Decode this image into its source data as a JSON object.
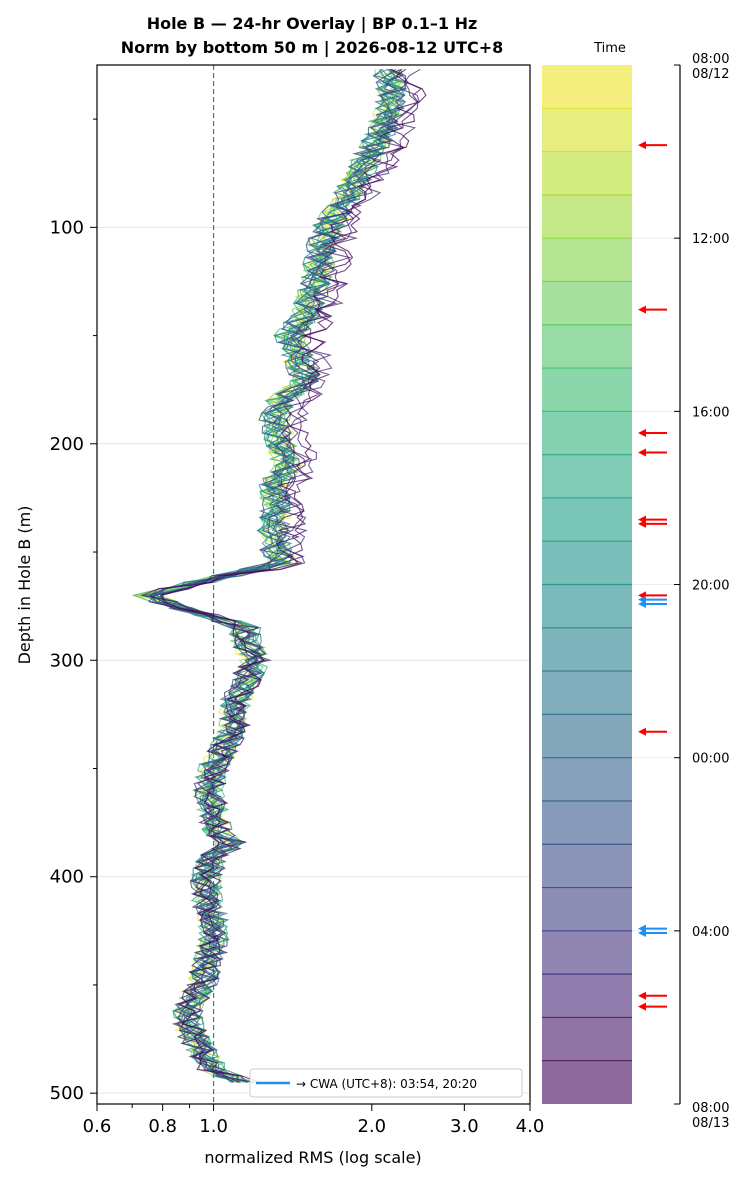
{
  "chart_data": {
    "type": "line",
    "title_line1": "Hole B — 24-hr Overlay  |  BP 0.1–1 Hz",
    "title_line2": "Norm by bottom 50 m  |  2026-08-12 UTC+8",
    "xlabel": "normalized RMS  (log scale)",
    "ylabel": "Depth in Hole B (m)",
    "xscale": "log",
    "xlim": [
      0.6,
      4.0
    ],
    "ylim": [
      505,
      25
    ],
    "x_ticks": [
      0.6,
      0.8,
      1.0,
      2.0,
      3.0,
      4.0
    ],
    "x_tick_labels": [
      "0.6",
      "0.8",
      "1.0",
      "2.0",
      "3.0",
      "4.0"
    ],
    "y_ticks": [
      100,
      200,
      300,
      400,
      500
    ],
    "y_tick_labels": [
      "100",
      "200",
      "300",
      "400",
      "500"
    ],
    "reference_line_x": 1.0,
    "grid": true,
    "profile": {
      "depth": [
        27,
        40,
        55,
        70,
        85,
        100,
        110,
        120,
        130,
        140,
        150,
        160,
        170,
        180,
        190,
        200,
        210,
        220,
        230,
        240,
        250,
        255,
        260,
        265,
        270,
        275,
        280,
        285,
        290,
        300,
        310,
        320,
        330,
        340,
        350,
        360,
        370,
        380,
        385,
        390,
        400,
        410,
        420,
        430,
        440,
        450,
        460,
        470,
        480,
        490,
        495
      ],
      "rms": [
        2.15,
        2.2,
        2.1,
        1.95,
        1.8,
        1.65,
        1.6,
        1.58,
        1.55,
        1.5,
        1.4,
        1.45,
        1.5,
        1.35,
        1.3,
        1.35,
        1.38,
        1.3,
        1.32,
        1.3,
        1.32,
        1.35,
        1.1,
        0.9,
        0.75,
        0.85,
        1.0,
        1.15,
        1.15,
        1.2,
        1.15,
        1.1,
        1.1,
        1.05,
        1.0,
        0.98,
        1.0,
        1.02,
        1.1,
        1.0,
        0.97,
        0.97,
        1.0,
        1.0,
        0.98,
        0.95,
        0.9,
        0.9,
        0.95,
        1.0,
        1.15
      ]
    },
    "curve_count": 24,
    "colorbar": {
      "label": "Time",
      "tick_labels": [
        "08:00\n08/12",
        "12:00",
        "16:00",
        "20:00",
        "00:00",
        "04:00",
        "08:00\n08/13"
      ],
      "tick_hours": [
        0,
        4,
        8,
        12,
        16,
        20,
        24
      ],
      "colormap": "viridis_r",
      "alpha": 0.6
    },
    "markers_red_hours": [
      1.85,
      5.65,
      8.5,
      8.95,
      10.5,
      10.6,
      12.25,
      15.4,
      21.5,
      21.75
    ],
    "markers_blue_hours": [
      12.35,
      12.45,
      19.95,
      20.05
    ],
    "legend": {
      "label": "→ CWA (UTC+8): 03:54, 20:20",
      "color": "#1f8ff5",
      "position": "lower-right"
    }
  }
}
